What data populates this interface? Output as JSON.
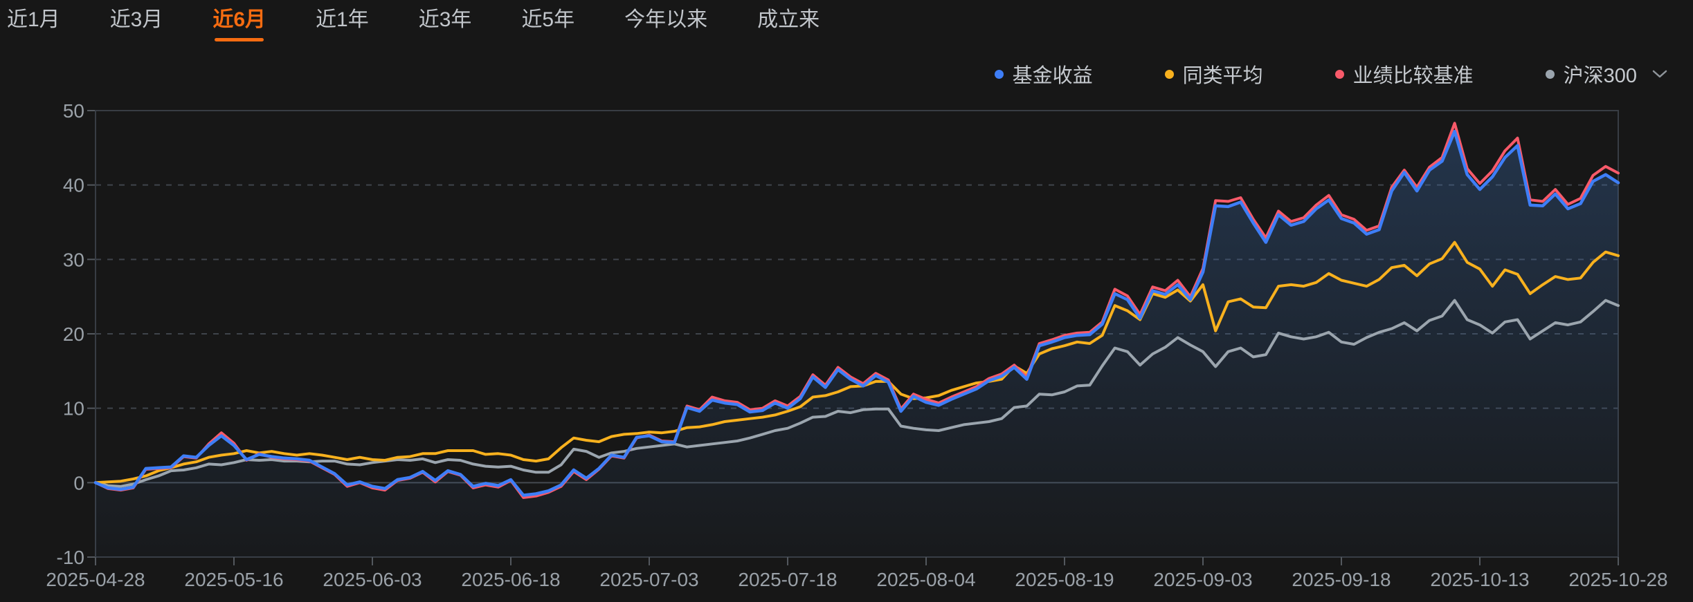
{
  "tabs": {
    "active": "近6月",
    "items": [
      {
        "key": "1m",
        "label": "近1月"
      },
      {
        "key": "3m",
        "label": "近3月"
      },
      {
        "key": "6m",
        "label": "近6月"
      },
      {
        "key": "1y",
        "label": "近1年"
      },
      {
        "key": "3y",
        "label": "近3年"
      },
      {
        "key": "5y",
        "label": "近5年"
      },
      {
        "key": "ytd",
        "label": "今年以来"
      },
      {
        "key": "inception",
        "label": "成立来"
      }
    ]
  },
  "legend": [
    {
      "key": "fund",
      "label": "基金收益",
      "color": "#3E7EF7"
    },
    {
      "key": "peer-average",
      "label": "同类平均",
      "color": "#F8B11E"
    },
    {
      "key": "benchmark",
      "label": "业绩比较基准",
      "color": "#F85A6A"
    },
    {
      "key": "csi300",
      "label": "沪深300",
      "color": "#9BA5AE",
      "has_dropdown": true
    }
  ],
  "colors": {
    "accent_orange": "#F66C11",
    "axis_text": "#9AA1A8",
    "grid_dashed": "#3F444B",
    "grid_zero": "#454A51",
    "border": "#383D44",
    "tick": "#53585E",
    "background": "#171717"
  },
  "chart_data": {
    "type": "line",
    "title": "",
    "xlabel": "",
    "ylabel": "",
    "ylim": [
      -10,
      50
    ],
    "y_tick_labels": [
      "50",
      "40",
      "30",
      "20",
      "10",
      "0",
      "-10"
    ],
    "x_tick_labels": [
      "2025-04-28",
      "2025-05-16",
      "2025-06-03",
      "2025-06-18",
      "2025-07-03",
      "2025-07-18",
      "2025-08-04",
      "2025-08-19",
      "2025-09-03",
      "2025-09-18",
      "2025-10-13",
      "2025-10-28"
    ],
    "grid": "horizontal-dashed",
    "legend_position": "top-right",
    "x": [
      "04-28",
      "04-29",
      "04-30",
      "05-06",
      "05-07",
      "05-08",
      "05-09",
      "05-12",
      "05-13",
      "05-14",
      "05-15",
      "05-16",
      "05-19",
      "05-20",
      "05-21",
      "05-22",
      "05-23",
      "05-26",
      "05-27",
      "05-28",
      "05-29",
      "05-30",
      "06-03",
      "06-04",
      "06-05",
      "06-06",
      "06-09",
      "06-10",
      "06-11",
      "06-12",
      "06-13",
      "06-16",
      "06-17",
      "06-18",
      "06-19",
      "06-20",
      "06-23",
      "06-24",
      "06-25",
      "06-26",
      "06-27",
      "06-30",
      "07-01",
      "07-02",
      "07-03",
      "07-04",
      "07-07",
      "07-08",
      "07-09",
      "07-10",
      "07-11",
      "07-14",
      "07-15",
      "07-16",
      "07-17",
      "07-18",
      "07-21",
      "07-22",
      "07-23",
      "07-24",
      "07-25",
      "07-28",
      "07-29",
      "07-30",
      "07-31",
      "08-01",
      "08-04",
      "08-05",
      "08-06",
      "08-07",
      "08-08",
      "08-11",
      "08-12",
      "08-13",
      "08-14",
      "08-15",
      "08-18",
      "08-19",
      "08-20",
      "08-21",
      "08-22",
      "08-25",
      "08-26",
      "08-27",
      "08-28",
      "08-29",
      "09-01",
      "09-02",
      "09-03",
      "09-04",
      "09-05",
      "09-08",
      "09-09",
      "09-10",
      "09-11",
      "09-12",
      "09-15",
      "09-16",
      "09-17",
      "09-18",
      "09-19",
      "09-22",
      "09-23",
      "09-24",
      "09-25",
      "09-26",
      "09-29",
      "09-30",
      "10-09",
      "10-10",
      "10-13",
      "10-14",
      "10-15",
      "10-16",
      "10-17",
      "10-20",
      "10-21",
      "10-22",
      "10-23",
      "10-24",
      "10-27",
      "10-28"
    ],
    "series": [
      {
        "name": "基金收益",
        "color": "#3E7EF7",
        "width": 4.5,
        "area": true,
        "area_fill_top": "rgba(62,115,185,0.32)",
        "area_fill_bottom": "rgba(62,115,185,0.03)",
        "values": [
          0,
          -0.7,
          -0.9,
          -0.6,
          1.9,
          2.0,
          2.1,
          3.6,
          3.4,
          5.0,
          6.3,
          5.0,
          3.1,
          3.8,
          3.5,
          3.3,
          3.2,
          3.0,
          2.1,
          1.2,
          -0.3,
          0.1,
          -0.5,
          -0.8,
          0.4,
          0.7,
          1.5,
          0.3,
          1.6,
          1.1,
          -0.5,
          -0.1,
          -0.4,
          0.4,
          -1.7,
          -1.5,
          -1.1,
          -0.3,
          1.7,
          0.6,
          1.9,
          3.7,
          3.4,
          6.1,
          6.3,
          5.5,
          5.4,
          10.1,
          9.6,
          11.1,
          10.7,
          10.5,
          9.5,
          9.7,
          10.7,
          10.0,
          11.3,
          14.2,
          12.8,
          15.2,
          13.9,
          13.0,
          14.4,
          13.5,
          9.6,
          11.6,
          10.8,
          10.4,
          11.2,
          11.9,
          12.6,
          13.7,
          14.3,
          15.5,
          13.9,
          18.4,
          18.9,
          19.5,
          19.8,
          19.9,
          21.3,
          25.4,
          24.6,
          22.1,
          25.8,
          25.3,
          26.6,
          24.6,
          28.3,
          37.2,
          37.1,
          37.7,
          34.9,
          32.3,
          36.0,
          34.6,
          35.1,
          36.8,
          38.0,
          35.5,
          34.9,
          33.4,
          34.0,
          39.2,
          41.7,
          39.2,
          42.0,
          43.2,
          47.2,
          41.4,
          39.4,
          41.1,
          43.7,
          45.3,
          37.3,
          37.2,
          38.8,
          36.8,
          37.5,
          40.5,
          41.4,
          40.3
        ]
      },
      {
        "name": "同类平均",
        "color": "#F8B11E",
        "width": 4,
        "area": false,
        "values": [
          0,
          0.1,
          0.2,
          0.5,
          0.9,
          1.6,
          2.0,
          2.5,
          2.8,
          3.4,
          3.7,
          3.9,
          4.3,
          4.0,
          4.2,
          3.9,
          3.7,
          3.9,
          3.7,
          3.4,
          3.1,
          3.4,
          3.1,
          3.0,
          3.4,
          3.5,
          3.9,
          3.9,
          4.3,
          4.3,
          4.3,
          3.8,
          3.9,
          3.7,
          3.1,
          2.9,
          3.2,
          4.7,
          6.0,
          5.7,
          5.5,
          6.2,
          6.5,
          6.6,
          6.8,
          6.7,
          6.9,
          7.4,
          7.5,
          7.8,
          8.2,
          8.4,
          8.6,
          8.8,
          9.1,
          9.6,
          10.2,
          11.5,
          11.7,
          12.2,
          12.9,
          13.0,
          13.6,
          13.6,
          11.9,
          11.3,
          11.4,
          11.7,
          12.4,
          12.9,
          13.4,
          13.6,
          13.9,
          15.7,
          14.7,
          17.3,
          18.0,
          18.4,
          18.9,
          18.7,
          19.8,
          23.8,
          23.1,
          21.9,
          25.4,
          24.9,
          25.9,
          24.4,
          26.6,
          20.4,
          24.3,
          24.7,
          23.6,
          23.5,
          26.4,
          26.6,
          26.4,
          26.9,
          28.1,
          27.2,
          26.8,
          26.4,
          27.3,
          28.9,
          29.2,
          27.8,
          29.4,
          30.1,
          32.3,
          29.6,
          28.7,
          26.4,
          28.6,
          28.0,
          25.4,
          26.6,
          27.7,
          27.3,
          27.5,
          29.6,
          31.0,
          30.5
        ]
      },
      {
        "name": "业绩比较基准",
        "color": "#F85A6A",
        "width": 4,
        "area": false,
        "values": [
          0,
          -0.8,
          -1.0,
          -0.7,
          1.8,
          1.9,
          2.0,
          3.5,
          3.3,
          5.2,
          6.7,
          5.3,
          3.0,
          3.9,
          3.4,
          3.2,
          3.1,
          2.9,
          2.0,
          1.1,
          -0.5,
          0.0,
          -0.7,
          -1.0,
          0.3,
          0.6,
          1.4,
          0.1,
          1.5,
          1.0,
          -0.7,
          -0.3,
          -0.6,
          0.3,
          -2.0,
          -1.8,
          -1.3,
          -0.5,
          1.5,
          0.4,
          1.8,
          3.6,
          3.3,
          6.0,
          6.4,
          5.6,
          5.5,
          10.3,
          9.8,
          11.5,
          11.0,
          10.8,
          9.8,
          10.0,
          11.0,
          10.3,
          11.6,
          14.5,
          13.1,
          15.5,
          14.2,
          13.3,
          14.7,
          13.8,
          9.9,
          11.9,
          11.2,
          10.7,
          11.5,
          12.2,
          12.9,
          14.0,
          14.6,
          15.8,
          14.2,
          18.7,
          19.2,
          19.8,
          20.1,
          20.2,
          21.6,
          26.0,
          25.1,
          22.6,
          26.3,
          25.8,
          27.2,
          25.0,
          28.8,
          37.9,
          37.8,
          38.3,
          35.4,
          32.9,
          36.5,
          35.1,
          35.6,
          37.3,
          38.6,
          36.0,
          35.4,
          33.9,
          34.5,
          39.7,
          42.0,
          39.7,
          42.4,
          43.7,
          48.3,
          42.2,
          40.2,
          41.9,
          44.6,
          46.3,
          38.0,
          37.8,
          39.4,
          37.4,
          38.2,
          41.3,
          42.5,
          41.6
        ]
      },
      {
        "name": "沪深300",
        "color": "#9BA5AE",
        "width": 4,
        "area": false,
        "values": [
          0,
          -0.4,
          -0.5,
          -0.2,
          0.4,
          0.9,
          1.6,
          1.7,
          2.0,
          2.5,
          2.4,
          2.7,
          3.1,
          3.0,
          3.1,
          2.9,
          2.9,
          2.8,
          2.9,
          2.9,
          2.5,
          2.4,
          2.7,
          2.9,
          3.1,
          3.0,
          3.2,
          2.7,
          3.1,
          3.0,
          2.5,
          2.2,
          2.1,
          2.2,
          1.7,
          1.4,
          1.4,
          2.4,
          4.5,
          4.2,
          3.4,
          4.0,
          4.2,
          4.6,
          4.8,
          5.0,
          5.2,
          4.8,
          5.0,
          5.2,
          5.4,
          5.6,
          6.0,
          6.5,
          7.0,
          7.3,
          8.0,
          8.8,
          8.9,
          9.6,
          9.4,
          9.8,
          9.9,
          9.9,
          7.6,
          7.3,
          7.1,
          7.0,
          7.4,
          7.8,
          8.0,
          8.2,
          8.6,
          10.1,
          10.3,
          11.9,
          11.8,
          12.2,
          13.0,
          13.1,
          15.7,
          18.1,
          17.6,
          15.8,
          17.3,
          18.2,
          19.5,
          18.5,
          17.6,
          15.6,
          17.6,
          18.1,
          16.9,
          17.2,
          20.1,
          19.6,
          19.3,
          19.6,
          20.2,
          18.9,
          18.6,
          19.5,
          20.2,
          20.7,
          21.5,
          20.4,
          21.8,
          22.4,
          24.5,
          21.9,
          21.2,
          20.1,
          21.6,
          21.9,
          19.3,
          20.4,
          21.5,
          21.2,
          21.6,
          23.0,
          24.5,
          23.8
        ]
      }
    ]
  }
}
